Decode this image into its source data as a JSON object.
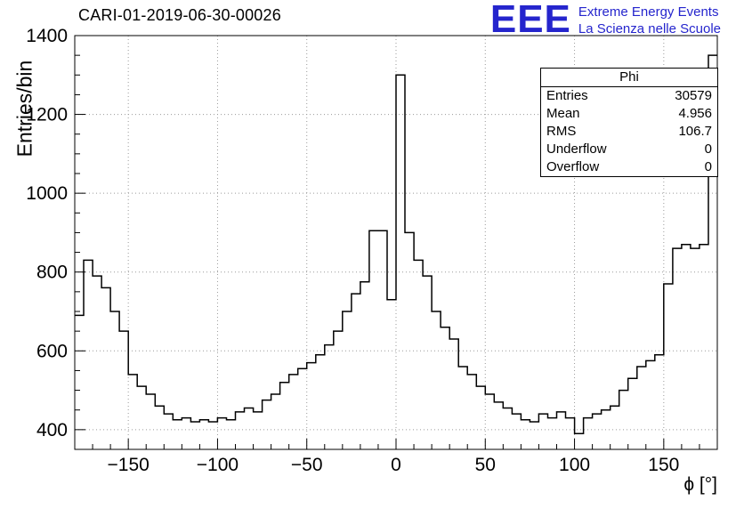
{
  "logo": {
    "acronym": "EEE",
    "line1": "Extreme Energy Events",
    "line2": "La Scienza nelle Scuole",
    "color": "#2525cd"
  },
  "stats": {
    "title": "Phi",
    "rows": [
      {
        "label": "Entries",
        "value": "30579"
      },
      {
        "label": "Mean",
        "value": "4.956"
      },
      {
        "label": "RMS",
        "value": "106.7"
      },
      {
        "label": "Underflow",
        "value": "0"
      },
      {
        "label": "Overflow",
        "value": "0"
      }
    ]
  },
  "chart_data": {
    "type": "bar",
    "subtype": "step-histogram",
    "title": "CARI-01-2019-06-30-00026",
    "xlabel": "ϕ [°]",
    "ylabel": "Entries/bin",
    "xlim": [
      -180,
      180
    ],
    "ylim": [
      350,
      1400
    ],
    "xticks": [
      -150,
      -100,
      -50,
      0,
      50,
      100,
      150
    ],
    "yticks": [
      400,
      600,
      800,
      1000,
      1200,
      1400
    ],
    "xminor": 10,
    "yminor": 50,
    "grid": true,
    "legend": "none",
    "line_color": "#000000",
    "bin_start": -180,
    "bin_width": 5,
    "values": [
      690,
      830,
      790,
      760,
      700,
      650,
      540,
      510,
      490,
      460,
      440,
      425,
      430,
      420,
      425,
      420,
      430,
      425,
      445,
      455,
      445,
      475,
      490,
      520,
      540,
      555,
      570,
      590,
      615,
      650,
      700,
      745,
      775,
      905,
      905,
      730,
      1300,
      900,
      830,
      790,
      700,
      660,
      630,
      560,
      540,
      510,
      490,
      470,
      455,
      440,
      425,
      420,
      440,
      430,
      445,
      430,
      390,
      430,
      440,
      450,
      460,
      500,
      530,
      560,
      575,
      590,
      770,
      860,
      870,
      860,
      870,
      1350
    ]
  }
}
